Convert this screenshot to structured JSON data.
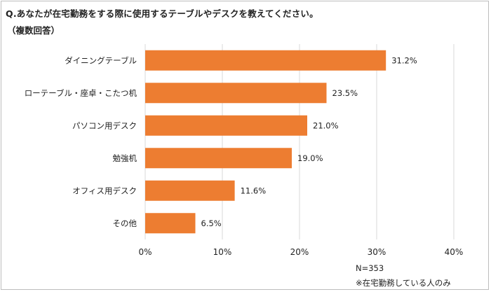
{
  "title": "Q.あなたが在宅勤務をする際に使用するテーブルやデスクを教えてください。",
  "subtitle": "（複数回答）",
  "sample_note": "N=353",
  "scope_note": "※在宅勤務している人のみ",
  "colors": {
    "bar": "#ED7D31",
    "grid": "#d9d9d9",
    "text": "#222222"
  },
  "chart_data": {
    "type": "bar",
    "orientation": "horizontal",
    "categories": [
      "ダイニングテーブル",
      "ローテーブル・座卓・こたつ机",
      "パソコン用デスク",
      "勉強机",
      "オフィス用デスク",
      "その他"
    ],
    "values": [
      31.2,
      23.5,
      21.0,
      19.0,
      11.6,
      6.5
    ],
    "value_labels": [
      "31.2%",
      "23.5%",
      "21.0%",
      "19.0%",
      "11.6%",
      "6.5%"
    ],
    "xlim": [
      0,
      40
    ],
    "xticks": [
      0,
      10,
      20,
      30,
      40
    ],
    "xtick_labels": [
      "0%",
      "10%",
      "20%",
      "30%",
      "40%"
    ],
    "grid": true,
    "legend": "none"
  }
}
